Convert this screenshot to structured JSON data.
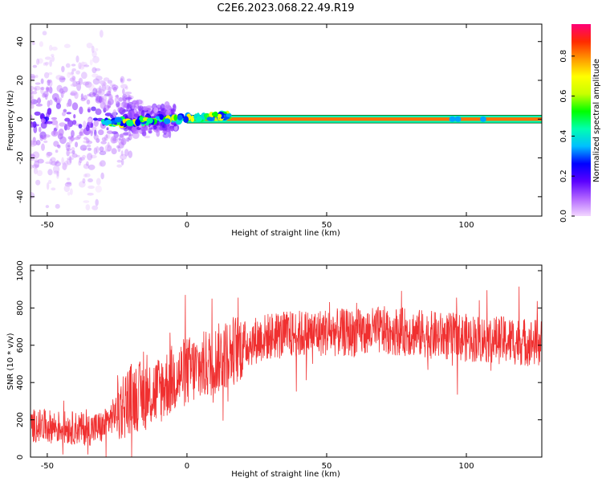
{
  "figure": {
    "title": "C2E6.2023.068.22.49.R19"
  },
  "chart_data": [
    {
      "type": "heatmap",
      "xlabel": "Height of straight line (km)",
      "ylabel": "Frequency (Hz)",
      "xlim": [
        -56,
        127
      ],
      "ylim": [
        -50,
        49
      ],
      "xticks": [
        -50,
        0,
        50,
        100
      ],
      "yticks": [
        -40,
        -20,
        0,
        20,
        40
      ],
      "colorbar": {
        "label": "Normalized spectral amplitude",
        "range": [
          0,
          0.96
        ],
        "ticks": [
          "0.0",
          "0.2",
          "0.4",
          "0.6",
          "0.8"
        ],
        "colormap": [
          "#f3d7ff",
          "#b266ff",
          "#5a00ff",
          "#0000ff",
          "#00bfff",
          "#00ffb0",
          "#00ff00",
          "#c8ff00",
          "#ffff00",
          "#ff9900",
          "#ff2a00",
          "#ff0077"
        ]
      },
      "features": {
        "reflector_band": {
          "y_center": 0,
          "y_half_width": 2,
          "x_start": 0,
          "x_end": 127,
          "amplitude": 0.85
        },
        "noise_region": {
          "x_start": -56,
          "x_end": -10,
          "amplitude_range": [
            0.0,
            0.3
          ]
        },
        "grid": false
      }
    },
    {
      "type": "line",
      "xlabel": "Height of straight line (km)",
      "ylabel": "SNR (10 * v/v)",
      "xlim": [
        -56,
        127
      ],
      "ylim": [
        0,
        1030
      ],
      "xticks": [
        -50,
        0,
        50,
        100
      ],
      "yticks": [
        0,
        200,
        400,
        600,
        800,
        1000
      ],
      "series": [
        {
          "color": "#f03030",
          "envelope": {
            "x": [
              -56,
              -45,
              -35,
              -30,
              -25,
              -20,
              -15,
              -10,
              -5,
              0,
              5,
              10,
              15,
              20,
              25,
              30,
              40,
              50,
              60,
              70,
              80,
              90,
              100,
              110,
              120,
              127
            ],
            "y": [
              170,
              160,
              150,
              160,
              250,
              320,
              330,
              360,
              420,
              460,
              480,
              520,
              560,
              600,
              630,
              650,
              660,
              670,
              665,
              680,
              670,
              650,
              640,
              630,
              620,
              610
            ]
          }
        }
      ],
      "grid": false
    }
  ]
}
